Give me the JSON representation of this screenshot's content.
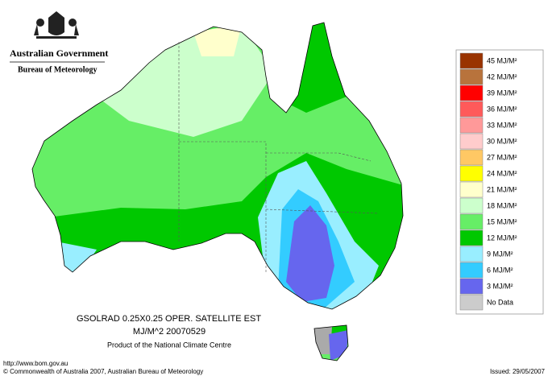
{
  "header": {
    "government": "Australian Government",
    "bureau": "Bureau of Meteorology"
  },
  "legend": [
    {
      "label": "45 MJ/M²",
      "color": "#993300"
    },
    {
      "label": "42 MJ/M²",
      "color": "#b8733c"
    },
    {
      "label": "39 MJ/M²",
      "color": "#ff0000"
    },
    {
      "label": "36 MJ/M²",
      "color": "#ff5a5a"
    },
    {
      "label": "33 MJ/M²",
      "color": "#ff9999"
    },
    {
      "label": "30 MJ/M²",
      "color": "#ffcccc"
    },
    {
      "label": "27 MJ/M²",
      "color": "#ffc864"
    },
    {
      "label": "24 MJ/M²",
      "color": "#ffff00"
    },
    {
      "label": "21 MJ/M²",
      "color": "#ffffcc"
    },
    {
      "label": "18 MJ/M²",
      "color": "#ccffcc"
    },
    {
      "label": "15 MJ/M²",
      "color": "#66ee66"
    },
    {
      "label": "12 MJ/M²",
      "color": "#00c800"
    },
    {
      "label": "9 MJ/M²",
      "color": "#99eeff"
    },
    {
      "label": "6 MJ/M²",
      "color": "#33ccff"
    },
    {
      "label": "3 MJ/M²",
      "color": "#6666ee"
    },
    {
      "label": "No Data",
      "color": "#cccccc"
    }
  ],
  "caption": {
    "line1": "GSOLRAD    0.25X0.25 OPER. SATELLITE EST",
    "line2": "MJ/M^2  20070529",
    "line3": "Product of the National Climate Centre"
  },
  "footer": {
    "url": "http://www.bom.gov.au",
    "copyright": "© Commonwealth of Australia 2007, Australian Bureau of Meteorology",
    "issued": "Issued: 29/05/2007"
  }
}
